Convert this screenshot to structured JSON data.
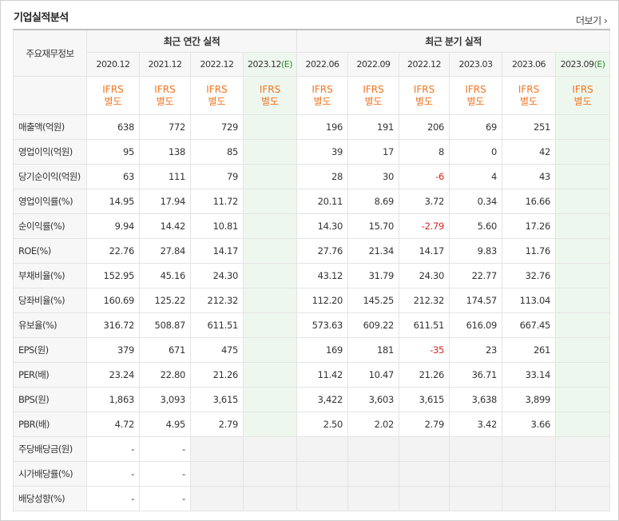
{
  "header": {
    "title": "기업실적분석",
    "more_label": "더보기"
  },
  "row_header_label": "주요재무정보",
  "groups": {
    "annual": "최근 연간 실적",
    "quarterly": "최근 분기 실적"
  },
  "estimate_mark": "(E)",
  "annual_periods": [
    "2020.12",
    "2021.12",
    "2022.12",
    "2023.12"
  ],
  "quarterly_periods": [
    "2022.06",
    "2022.09",
    "2022.12",
    "2023.03",
    "2023.06",
    "2023.09"
  ],
  "standard": {
    "line1": "IFRS",
    "line2": "별도"
  },
  "rows": [
    {
      "label": "매출액(억원)",
      "annual": [
        "638",
        "772",
        "729",
        ""
      ],
      "quarterly": [
        "196",
        "191",
        "206",
        "69",
        "251",
        ""
      ]
    },
    {
      "label": "영업이익(억원)",
      "annual": [
        "95",
        "138",
        "85",
        ""
      ],
      "quarterly": [
        "39",
        "17",
        "8",
        "0",
        "42",
        ""
      ]
    },
    {
      "label": "당기순이익(억원)",
      "annual": [
        "63",
        "111",
        "79",
        ""
      ],
      "quarterly": [
        "28",
        "30",
        "-6",
        "4",
        "43",
        ""
      ]
    },
    {
      "label": "영업이익률(%)",
      "annual": [
        "14.95",
        "17.94",
        "11.72",
        ""
      ],
      "quarterly": [
        "20.11",
        "8.69",
        "3.72",
        "0.34",
        "16.66",
        ""
      ]
    },
    {
      "label": "순이익률(%)",
      "annual": [
        "9.94",
        "14.42",
        "10.81",
        ""
      ],
      "quarterly": [
        "14.30",
        "15.70",
        "-2.79",
        "5.60",
        "17.26",
        ""
      ]
    },
    {
      "label": "ROE(%)",
      "annual": [
        "22.76",
        "27.84",
        "14.17",
        ""
      ],
      "quarterly": [
        "27.76",
        "21.34",
        "14.17",
        "9.83",
        "11.76",
        ""
      ]
    },
    {
      "label": "부채비율(%)",
      "annual": [
        "152.95",
        "45.16",
        "24.30",
        ""
      ],
      "quarterly": [
        "43.12",
        "31.79",
        "24.30",
        "22.77",
        "32.76",
        ""
      ]
    },
    {
      "label": "당좌비율(%)",
      "annual": [
        "160.69",
        "125.22",
        "212.32",
        ""
      ],
      "quarterly": [
        "112.20",
        "145.25",
        "212.32",
        "174.57",
        "113.04",
        ""
      ]
    },
    {
      "label": "유보율(%)",
      "annual": [
        "316.72",
        "508.87",
        "611.51",
        ""
      ],
      "quarterly": [
        "573.63",
        "609.22",
        "611.51",
        "616.09",
        "667.45",
        ""
      ]
    },
    {
      "label": "EPS(원)",
      "annual": [
        "379",
        "671",
        "475",
        ""
      ],
      "quarterly": [
        "169",
        "181",
        "-35",
        "23",
        "261",
        ""
      ]
    },
    {
      "label": "PER(배)",
      "annual": [
        "23.24",
        "22.80",
        "21.26",
        ""
      ],
      "quarterly": [
        "11.42",
        "10.47",
        "21.26",
        "36.71",
        "33.14",
        ""
      ]
    },
    {
      "label": "BPS(원)",
      "annual": [
        "1,863",
        "3,093",
        "3,615",
        ""
      ],
      "quarterly": [
        "3,422",
        "3,603",
        "3,615",
        "3,638",
        "3,899",
        ""
      ]
    },
    {
      "label": "PBR(배)",
      "annual": [
        "4.72",
        "4.95",
        "2.79",
        ""
      ],
      "quarterly": [
        "2.50",
        "2.02",
        "2.79",
        "3.42",
        "3.66",
        ""
      ]
    },
    {
      "label": "주당배당금(원)",
      "annual": [
        "-",
        "-",
        "",
        ""
      ],
      "quarterly": [
        "",
        "",
        "",
        "",
        "",
        ""
      ]
    },
    {
      "label": "시가배당률(%)",
      "annual": [
        "-",
        "-",
        "",
        ""
      ],
      "quarterly": [
        "",
        "",
        "",
        "",
        "",
        ""
      ]
    },
    {
      "label": "배당성향(%)",
      "annual": [
        "-",
        "-",
        "",
        ""
      ],
      "quarterly": [
        "",
        "",
        "",
        "",
        "",
        ""
      ]
    }
  ],
  "colors": {
    "negative": "#e02020",
    "standard": "#f07522",
    "estimate_bg": "#eef7ee",
    "estimate_mark": "#2a8a2a"
  }
}
